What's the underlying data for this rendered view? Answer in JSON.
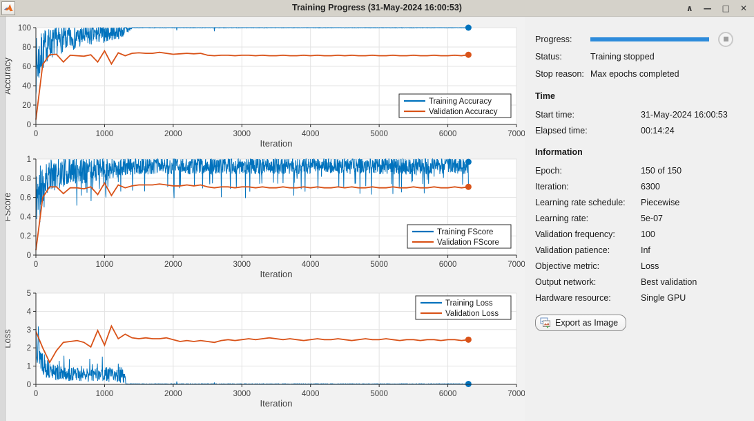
{
  "window": {
    "title": "Training Progress (31-May-2024 16:00:53)",
    "controls": {
      "shade": "∧",
      "minimize": "—",
      "maximize": "□",
      "close": "✕"
    }
  },
  "colors": {
    "training_line": "#0072BD",
    "validation_line": "#D95319",
    "progress_bar": "#2D8BDB",
    "grid": "#e3e3e3",
    "axis": "#2b2b2b",
    "tick_text": "#424242"
  },
  "panel": {
    "progress": {
      "label": "Progress:",
      "percent": 100
    },
    "status": {
      "label": "Status:",
      "value": "Training stopped"
    },
    "stop_reason": {
      "label": "Stop reason:",
      "value": "Max epochs completed"
    },
    "time": {
      "heading": "Time",
      "rows": [
        {
          "label": "Start time:",
          "value": "31-May-2024 16:00:53"
        },
        {
          "label": "Elapsed time:",
          "value": "00:14:24"
        }
      ]
    },
    "information": {
      "heading": "Information",
      "rows": [
        {
          "label": "Epoch:",
          "value": "150 of 150"
        },
        {
          "label": "Iteration:",
          "value": "6300"
        },
        {
          "label": "Learning rate schedule:",
          "value": "Piecewise"
        },
        {
          "label": "Learning rate:",
          "value": "5e-07"
        },
        {
          "label": "Validation frequency:",
          "value": "100"
        },
        {
          "label": "Validation patience:",
          "value": "Inf"
        },
        {
          "label": "Objective metric:",
          "value": "Loss"
        },
        {
          "label": "Output network:",
          "value": "Best validation"
        },
        {
          "label": "Hardware resource:",
          "value": "Single GPU"
        }
      ]
    },
    "export_button_label": "Export as Image"
  },
  "chart_data": [
    {
      "id": "accuracy",
      "type": "line",
      "ylabel": "Accuracy",
      "xlabel": "Iteration",
      "xlim": [
        0,
        7000
      ],
      "ylim": [
        0,
        100
      ],
      "xtick_vals": [
        0,
        1000,
        2000,
        3000,
        4000,
        5000,
        6000,
        7000
      ],
      "xtick_labels": [
        "0",
        "1000",
        "2000",
        "3000",
        "4000",
        "5000",
        "6000",
        "7000"
      ],
      "ytick_vals": [
        0,
        20,
        40,
        60,
        80,
        100
      ],
      "ytick_labels": [
        "0",
        "20",
        "40",
        "60",
        "80",
        "100"
      ],
      "grid": true,
      "legend": {
        "position": "southeast-inside",
        "entries": [
          "Training Accuracy",
          "Validation Accuracy"
        ]
      },
      "series": [
        {
          "name": "Training Accuracy",
          "color": "#0072BD",
          "style": "noisy",
          "seed": 7,
          "x_end": 6300,
          "clip": [
            0,
            100
          ],
          "envelope": [
            [
              0,
              60,
              30
            ],
            [
              150,
              82,
              18
            ],
            [
              400,
              88,
              13
            ],
            [
              800,
              92,
              11
            ],
            [
              1200,
              96,
              8
            ],
            [
              1350,
              98,
              5
            ],
            [
              1405,
              100,
              0.35
            ],
            [
              6300,
              100,
              0.35
            ]
          ],
          "events": [
            [
              2050,
              97.2
            ],
            [
              2600,
              96.3
            ]
          ],
          "end_marker": [
            6300,
            100
          ]
        },
        {
          "name": "Validation Accuracy",
          "color": "#D95319",
          "style": "line",
          "x_start": 0,
          "x_step": 100,
          "values": [
            5,
            62,
            72,
            72.5,
            64.5,
            71.5,
            71,
            70.5,
            72,
            64.5,
            76,
            62.5,
            74,
            71,
            73.5,
            74,
            73.5,
            73.5,
            74.5,
            73.5,
            72.5,
            73,
            73.5,
            73,
            73.5,
            71.5,
            71,
            71.5,
            71.5,
            71,
            71.5,
            71.5,
            71,
            71.5,
            71,
            71,
            71.5,
            71,
            71,
            71.5,
            71,
            71.5,
            71,
            71,
            71.5,
            71,
            71.5,
            71,
            71,
            71.5,
            71,
            71,
            71.5,
            71,
            71,
            71.5,
            71,
            71,
            71.5,
            71,
            71,
            71.5,
            71,
            72
          ],
          "end_marker": [
            6300,
            72
          ]
        }
      ]
    },
    {
      "id": "fscore",
      "type": "line",
      "ylabel": "FScore",
      "xlabel": "Iteration",
      "xlim": [
        0,
        7000
      ],
      "ylim": [
        0,
        1
      ],
      "xtick_vals": [
        0,
        1000,
        2000,
        3000,
        4000,
        5000,
        6000,
        7000
      ],
      "xtick_labels": [
        "0",
        "1000",
        "2000",
        "3000",
        "4000",
        "5000",
        "6000",
        "7000"
      ],
      "ytick_vals": [
        0,
        0.2,
        0.4,
        0.6,
        0.8,
        1
      ],
      "ytick_labels": [
        "0",
        "0.2",
        "0.4",
        "0.6",
        "0.8",
        "1"
      ],
      "grid": true,
      "legend": {
        "position": "southeast-inside",
        "entries": [
          "Training FScore",
          "Validation FScore"
        ]
      },
      "series": [
        {
          "name": "Training FScore",
          "color": "#0072BD",
          "style": "noisy",
          "seed": 11,
          "x_end": 6300,
          "clip": [
            0,
            1
          ],
          "envelope": [
            [
              0,
              0.6,
              0.3
            ],
            [
              150,
              0.82,
              0.18
            ],
            [
              400,
              0.86,
              0.15
            ],
            [
              800,
              0.89,
              0.13
            ],
            [
              1300,
              0.92,
              0.1
            ],
            [
              1400,
              0.93,
              0.09
            ],
            [
              6300,
              0.93,
              0.09
            ]
          ],
          "down_spikes": {
            "from": 0,
            "to": 6300,
            "prob": 0.06,
            "mag": [
              0.05,
              0.28
            ]
          },
          "end_marker": [
            6300,
            0.97
          ]
        },
        {
          "name": "Validation FScore",
          "color": "#D95319",
          "style": "line",
          "x_start": 0,
          "x_step": 100,
          "values": [
            0.05,
            0.6,
            0.71,
            0.71,
            0.64,
            0.7,
            0.7,
            0.69,
            0.71,
            0.63,
            0.75,
            0.62,
            0.73,
            0.7,
            0.72,
            0.73,
            0.73,
            0.73,
            0.74,
            0.73,
            0.72,
            0.72,
            0.73,
            0.72,
            0.73,
            0.71,
            0.7,
            0.71,
            0.71,
            0.7,
            0.71,
            0.71,
            0.7,
            0.71,
            0.7,
            0.7,
            0.71,
            0.7,
            0.7,
            0.71,
            0.7,
            0.71,
            0.7,
            0.7,
            0.71,
            0.7,
            0.71,
            0.7,
            0.7,
            0.71,
            0.7,
            0.7,
            0.71,
            0.7,
            0.7,
            0.71,
            0.7,
            0.7,
            0.71,
            0.7,
            0.7,
            0.71,
            0.7,
            0.71
          ],
          "end_marker": [
            6300,
            0.71
          ]
        }
      ]
    },
    {
      "id": "loss",
      "type": "line",
      "ylabel": "Loss",
      "xlabel": "Iteration",
      "xlim": [
        0,
        7000
      ],
      "ylim": [
        0,
        5
      ],
      "xtick_vals": [
        0,
        1000,
        2000,
        3000,
        4000,
        5000,
        6000,
        7000
      ],
      "xtick_labels": [
        "0",
        "1000",
        "2000",
        "3000",
        "4000",
        "5000",
        "6000",
        "7000"
      ],
      "ytick_vals": [
        0,
        1,
        2,
        3,
        4,
        5
      ],
      "ytick_labels": [
        "0",
        "1",
        "2",
        "3",
        "4",
        "5"
      ],
      "grid": true,
      "legend": {
        "position": "northeast-inside",
        "entries": [
          "Training Loss",
          "Validation Loss"
        ]
      },
      "series": [
        {
          "name": "Training Loss",
          "color": "#0072BD",
          "style": "noisy",
          "seed": 13,
          "x_end": 6300,
          "clip": [
            0,
            5
          ],
          "envelope": [
            [
              0,
              3.2,
              1.8
            ],
            [
              60,
              1.6,
              0.9
            ],
            [
              150,
              0.9,
              0.55
            ],
            [
              300,
              0.6,
              0.4
            ],
            [
              700,
              0.5,
              0.38
            ],
            [
              1000,
              0.55,
              0.42
            ],
            [
              1290,
              0.5,
              0.45
            ],
            [
              1312,
              0.02,
              0.015
            ],
            [
              6300,
              0.02,
              0.015
            ]
          ],
          "up_spikes": {
            "from": 150,
            "to": 1300,
            "prob": 0.05,
            "mag": [
              0.3,
              0.9
            ]
          },
          "events": [
            [
              2050,
              0.16
            ],
            [
              2600,
              0.1
            ]
          ],
          "end_marker": [
            6300,
            0.02
          ]
        },
        {
          "name": "Validation Loss",
          "color": "#D95319",
          "style": "line",
          "x_start": 0,
          "x_step": 100,
          "values": [
            2.9,
            2.0,
            1.2,
            1.85,
            2.3,
            2.35,
            2.4,
            2.3,
            2.05,
            2.95,
            2.15,
            3.2,
            2.5,
            2.75,
            2.55,
            2.5,
            2.55,
            2.5,
            2.5,
            2.55,
            2.45,
            2.35,
            2.4,
            2.35,
            2.4,
            2.35,
            2.3,
            2.4,
            2.45,
            2.4,
            2.45,
            2.5,
            2.45,
            2.5,
            2.55,
            2.5,
            2.45,
            2.5,
            2.45,
            2.4,
            2.45,
            2.5,
            2.45,
            2.45,
            2.5,
            2.45,
            2.4,
            2.45,
            2.5,
            2.45,
            2.45,
            2.5,
            2.45,
            2.4,
            2.45,
            2.45,
            2.4,
            2.45,
            2.45,
            2.4,
            2.45,
            2.45,
            2.4,
            2.45
          ],
          "end_marker": [
            6300,
            2.45
          ]
        }
      ]
    }
  ]
}
